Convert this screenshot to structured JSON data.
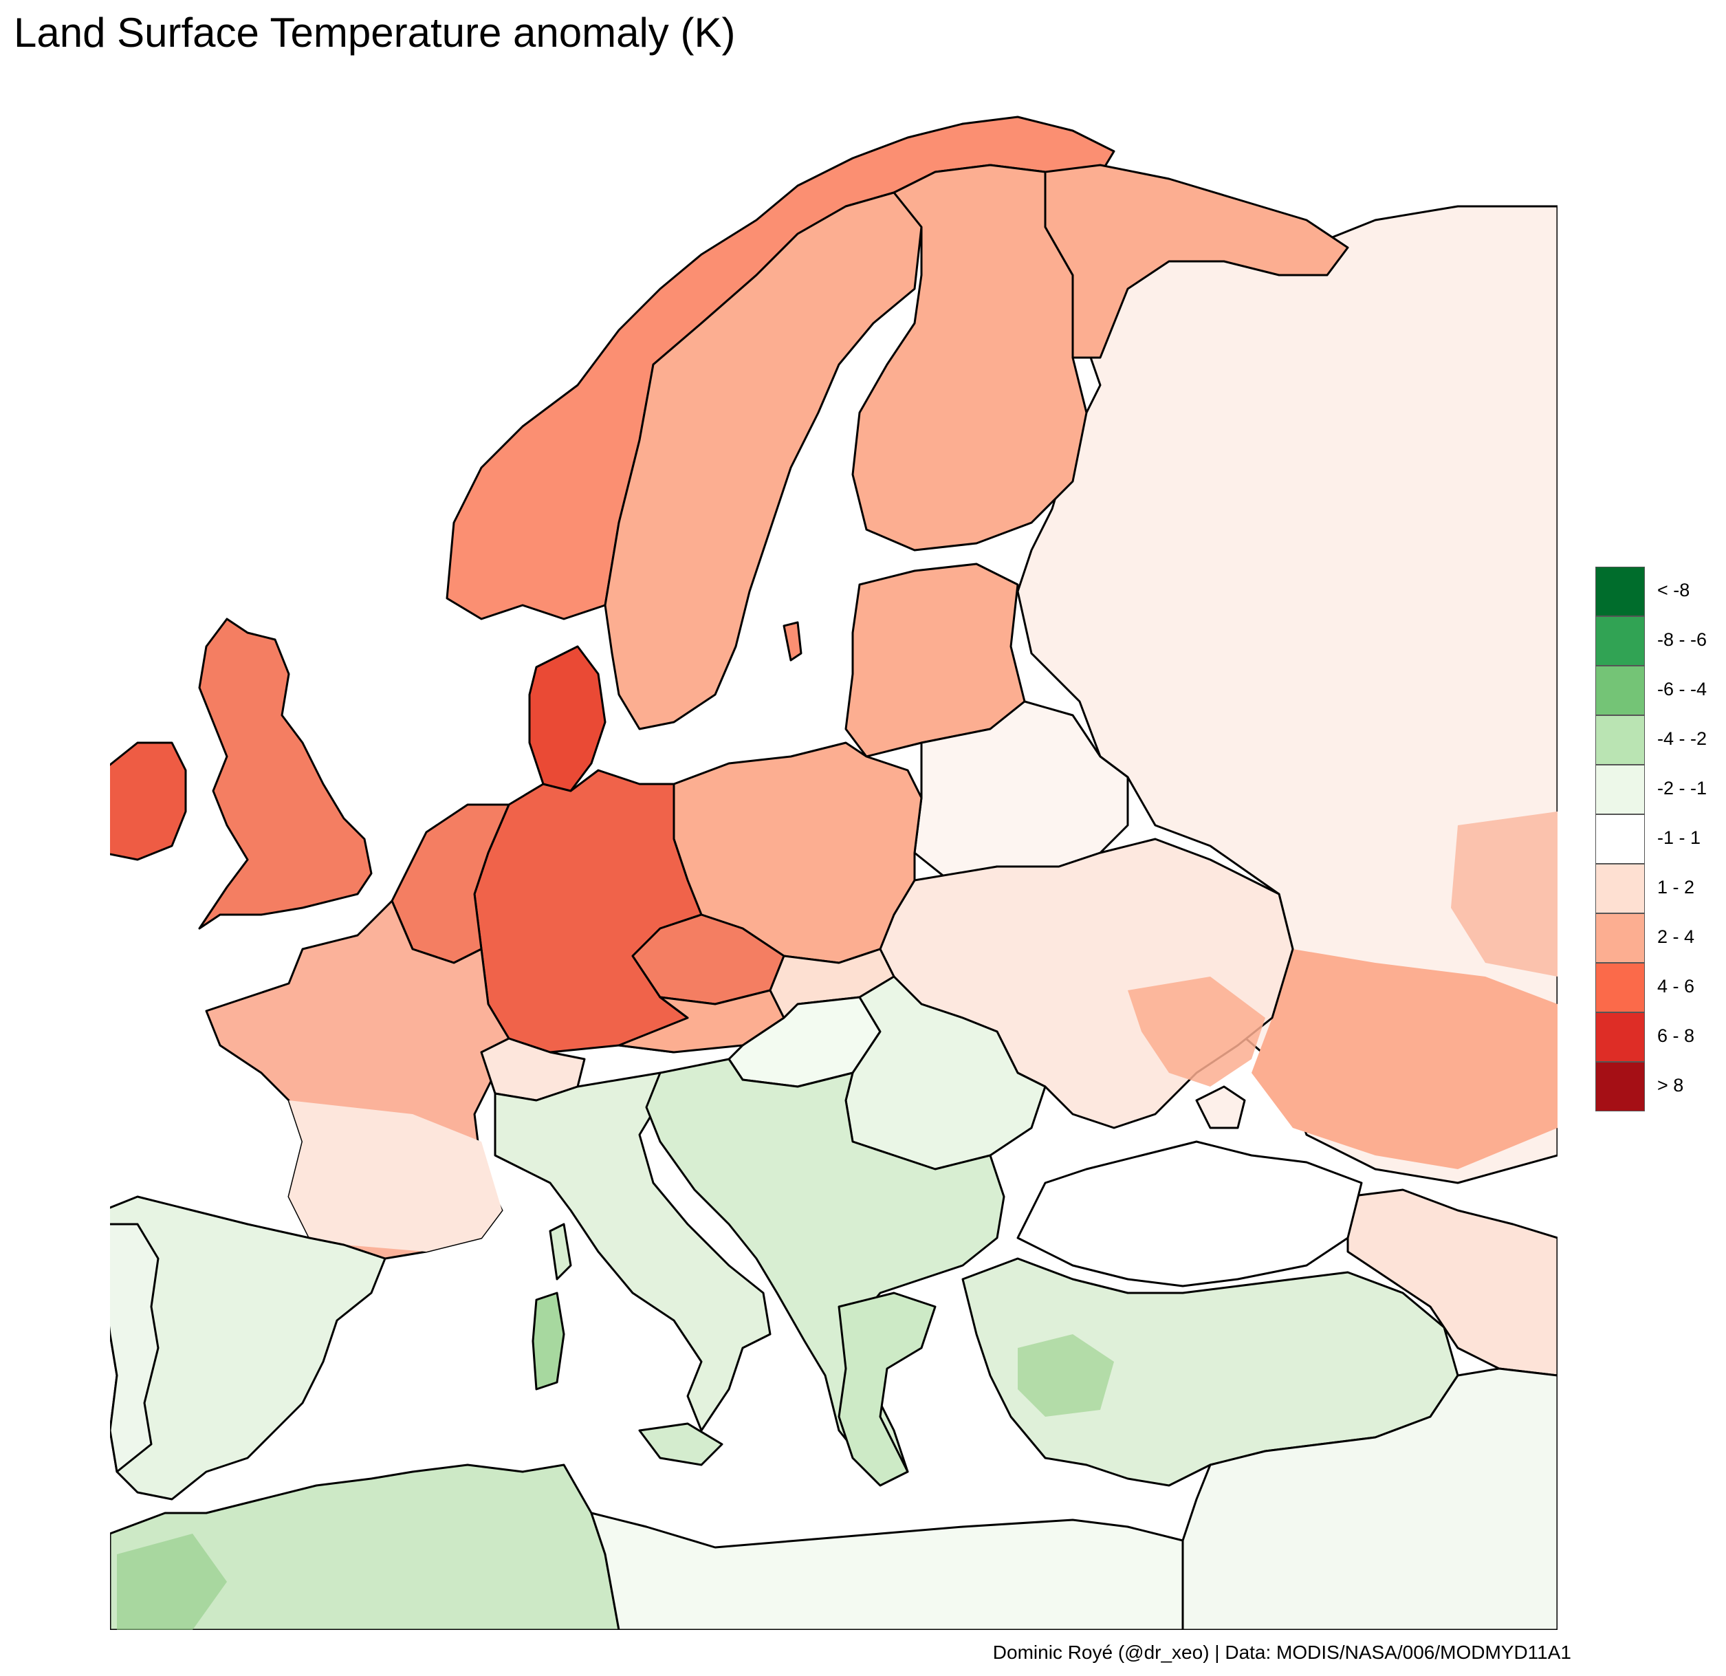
{
  "title": "Land Surface Temperature anomaly (K)",
  "caption": "Dominic Royé (@dr_xeo) | Data: MODIS/NASA/006/MODMYD11A1",
  "legend": {
    "items": [
      {
        "label": "< -8",
        "color": "#006d2c"
      },
      {
        "label": "-8 - -6",
        "color": "#31a354"
      },
      {
        "label": "-6 - -4",
        "color": "#74c476"
      },
      {
        "label": "-4 - -2",
        "color": "#bae4b3"
      },
      {
        "label": "-2 - -1",
        "color": "#edf8e9"
      },
      {
        "label": "-1 - 1",
        "color": "#ffffff"
      },
      {
        "label": "1 - 2",
        "color": "#fee0d2"
      },
      {
        "label": "2 - 4",
        "color": "#fcae91"
      },
      {
        "label": "4 - 6",
        "color": "#fb6a4a"
      },
      {
        "label": "6 - 8",
        "color": "#de2d26"
      },
      {
        "label": "> 8",
        "color": "#a50f15"
      }
    ]
  },
  "colors": {
    "background": "#ffffff",
    "border": "#000000"
  }
}
